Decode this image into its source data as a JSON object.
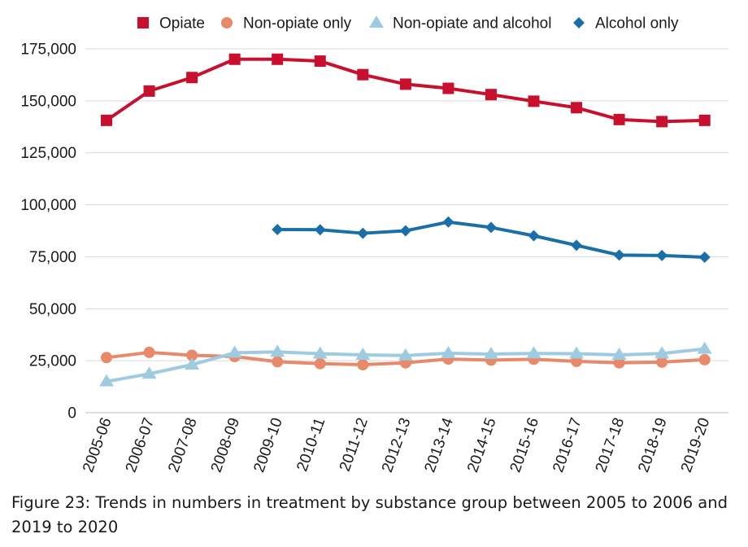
{
  "caption": "Figure 23: Trends in numbers in treatment by substance group between 2005 to 2006 and 2019 to 2020",
  "chart_data": {
    "type": "line",
    "title": "",
    "xlabel": "",
    "ylabel": "",
    "categories": [
      "2005-06",
      "2006-07",
      "2007-08",
      "2008-09",
      "2009-10",
      "2010-11",
      "2011-12",
      "2012-13",
      "2013-14",
      "2014-15",
      "2015-16",
      "2016-17",
      "2017-18",
      "2018-19",
      "2019-20"
    ],
    "ylim": [
      0,
      175000
    ],
    "yticks": [
      0,
      25000,
      50000,
      75000,
      100000,
      125000,
      150000,
      175000
    ],
    "ytick_labels": [
      "0",
      "25,000",
      "50,000",
      "75,000",
      "100,000",
      "125,000",
      "150,000",
      "175,000"
    ],
    "grid": "horizontal",
    "legend_position": "top",
    "series": [
      {
        "name": "Opiate",
        "color": "#c8102e",
        "marker": "square",
        "values": [
          140600,
          154700,
          161200,
          170000,
          170000,
          169100,
          162600,
          158000,
          156000,
          153000,
          149800,
          146700,
          141000,
          140000,
          140600
        ]
      },
      {
        "name": "Non-opiate only",
        "color": "#e8896a",
        "marker": "circle",
        "values": [
          26500,
          29000,
          27600,
          27000,
          24500,
          23600,
          23100,
          24000,
          25800,
          25300,
          25700,
          24700,
          24000,
          24300,
          25500
        ]
      },
      {
        "name": "Non-opiate and alcohol",
        "color": "#9fcbe0",
        "marker": "triangle",
        "values": [
          15000,
          18700,
          23100,
          28800,
          29200,
          28400,
          27800,
          27500,
          28600,
          28200,
          28500,
          28400,
          27800,
          28500,
          30700
        ]
      },
      {
        "name": "Alcohol only",
        "color": "#1a6fa8",
        "marker": "diamond",
        "values": [
          null,
          null,
          null,
          null,
          88100,
          88000,
          86300,
          87500,
          91700,
          89100,
          85100,
          80500,
          75800,
          75600,
          74800
        ]
      }
    ]
  }
}
